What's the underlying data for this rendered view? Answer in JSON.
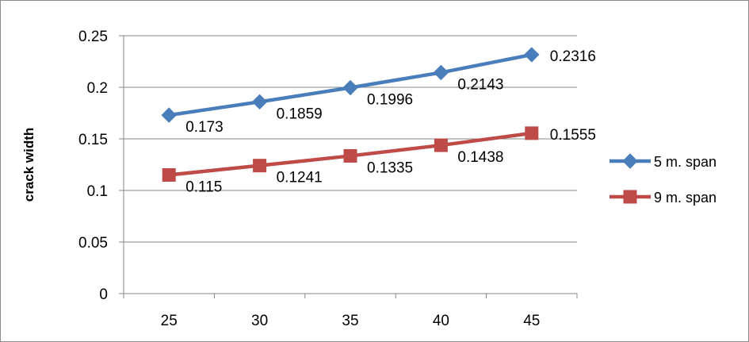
{
  "chart_data": {
    "type": "line",
    "title": "",
    "xlabel": "",
    "ylabel": "crack width",
    "x": [
      "25",
      "30",
      "35",
      "40",
      "45"
    ],
    "ylim": [
      0,
      0.25
    ],
    "yticks": [
      "0",
      "0.05",
      "0.1",
      "0.15",
      "0.2",
      "0.25"
    ],
    "grid": "horizontal",
    "legend_position": "right",
    "series": [
      {
        "name": "5 m. span",
        "values": [
          0.173,
          0.1859,
          0.1996,
          0.2143,
          0.2316
        ],
        "labels": [
          "0.173",
          "0.1859",
          "0.1996",
          "0.2143",
          "0.2316"
        ],
        "color": "#4a7ebb",
        "marker": "diamond"
      },
      {
        "name": "9 m. span",
        "values": [
          0.115,
          0.1241,
          0.1335,
          0.1438,
          0.1555
        ],
        "labels": [
          "0.115",
          "0.1241",
          "0.1335",
          "0.1438",
          "0.1555"
        ],
        "color": "#be4b48",
        "marker": "square"
      }
    ]
  }
}
